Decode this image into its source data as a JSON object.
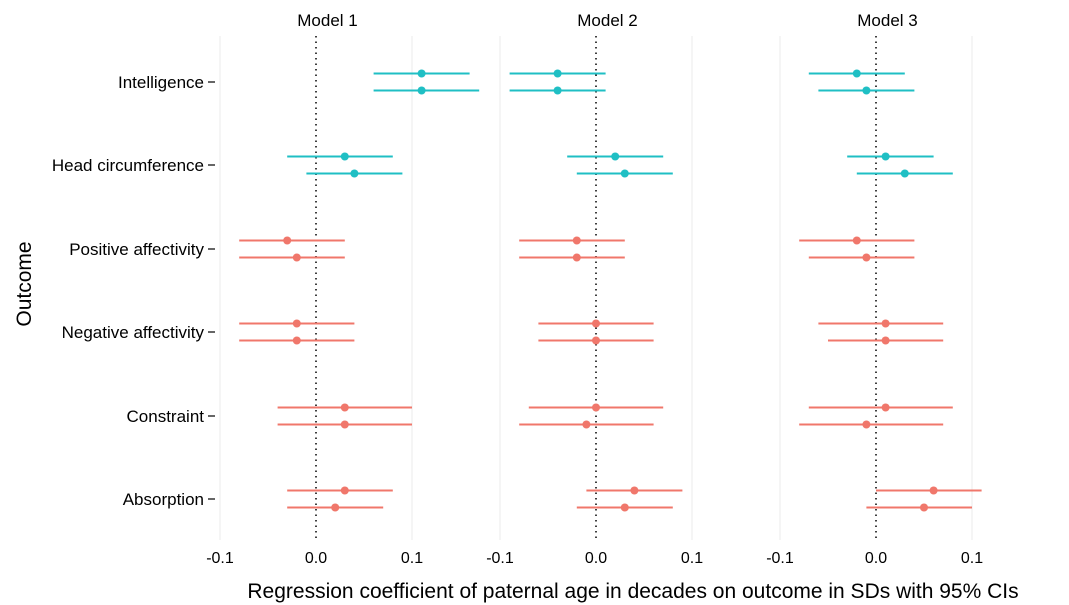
{
  "chart_data": {
    "type": "forest",
    "xlabel": "Regression coefficient of paternal age in decades on outcome in SDs with 95% CIs",
    "ylabel": "Outcome",
    "xlim": [
      -0.1,
      0.12
    ],
    "x_ticks": [
      -0.1,
      0.0,
      0.1
    ],
    "x_tick_labels": [
      "-0.1",
      "0.0",
      "0.1"
    ],
    "reference_line": 0,
    "grid": true,
    "outcomes": [
      "Intelligence",
      "Head circumference",
      "Positive affectivity",
      "Negative affectivity",
      "Constraint",
      "Absorption"
    ],
    "colors": {
      "Intelligence": "#1fbfc4",
      "Head circumference": "#1fbfc4",
      "Positive affectivity": "#f0776b",
      "Negative affectivity": "#f0776b",
      "Constraint": "#f0776b",
      "Absorption": "#f0776b"
    },
    "panels": [
      {
        "title": "Model 1",
        "rows": [
          {
            "outcome": "Intelligence",
            "estimates": [
              {
                "est": 0.11,
                "lo": 0.06,
                "hi": 0.16
              },
              {
                "est": 0.11,
                "lo": 0.06,
                "hi": 0.17
              }
            ]
          },
          {
            "outcome": "Head circumference",
            "estimates": [
              {
                "est": 0.03,
                "lo": -0.03,
                "hi": 0.08
              },
              {
                "est": 0.04,
                "lo": -0.01,
                "hi": 0.09
              }
            ]
          },
          {
            "outcome": "Positive affectivity",
            "estimates": [
              {
                "est": -0.03,
                "lo": -0.08,
                "hi": 0.03
              },
              {
                "est": -0.02,
                "lo": -0.08,
                "hi": 0.03
              }
            ]
          },
          {
            "outcome": "Negative affectivity",
            "estimates": [
              {
                "est": -0.02,
                "lo": -0.08,
                "hi": 0.04
              },
              {
                "est": -0.02,
                "lo": -0.08,
                "hi": 0.04
              }
            ]
          },
          {
            "outcome": "Constraint",
            "estimates": [
              {
                "est": 0.03,
                "lo": -0.04,
                "hi": 0.1
              },
              {
                "est": 0.03,
                "lo": -0.04,
                "hi": 0.1
              }
            ]
          },
          {
            "outcome": "Absorption",
            "estimates": [
              {
                "est": 0.03,
                "lo": -0.03,
                "hi": 0.08
              },
              {
                "est": 0.02,
                "lo": -0.03,
                "hi": 0.07
              }
            ]
          }
        ]
      },
      {
        "title": "Model 2",
        "rows": [
          {
            "outcome": "Intelligence",
            "estimates": [
              {
                "est": -0.04,
                "lo": -0.09,
                "hi": 0.01
              },
              {
                "est": -0.04,
                "lo": -0.09,
                "hi": 0.01
              }
            ]
          },
          {
            "outcome": "Head circumference",
            "estimates": [
              {
                "est": 0.02,
                "lo": -0.03,
                "hi": 0.07
              },
              {
                "est": 0.03,
                "lo": -0.02,
                "hi": 0.08
              }
            ]
          },
          {
            "outcome": "Positive affectivity",
            "estimates": [
              {
                "est": -0.02,
                "lo": -0.08,
                "hi": 0.03
              },
              {
                "est": -0.02,
                "lo": -0.08,
                "hi": 0.03
              }
            ]
          },
          {
            "outcome": "Negative affectivity",
            "estimates": [
              {
                "est": 0.0,
                "lo": -0.06,
                "hi": 0.06
              },
              {
                "est": 0.0,
                "lo": -0.06,
                "hi": 0.06
              }
            ]
          },
          {
            "outcome": "Constraint",
            "estimates": [
              {
                "est": 0.0,
                "lo": -0.07,
                "hi": 0.07
              },
              {
                "est": -0.01,
                "lo": -0.08,
                "hi": 0.06
              }
            ]
          },
          {
            "outcome": "Absorption",
            "estimates": [
              {
                "est": 0.04,
                "lo": -0.01,
                "hi": 0.09
              },
              {
                "est": 0.03,
                "lo": -0.02,
                "hi": 0.08
              }
            ]
          }
        ]
      },
      {
        "title": "Model 3",
        "rows": [
          {
            "outcome": "Intelligence",
            "estimates": [
              {
                "est": -0.02,
                "lo": -0.07,
                "hi": 0.03
              },
              {
                "est": -0.01,
                "lo": -0.06,
                "hi": 0.04
              }
            ]
          },
          {
            "outcome": "Head circumference",
            "estimates": [
              {
                "est": 0.01,
                "lo": -0.03,
                "hi": 0.06
              },
              {
                "est": 0.03,
                "lo": -0.02,
                "hi": 0.08
              }
            ]
          },
          {
            "outcome": "Positive affectivity",
            "estimates": [
              {
                "est": -0.02,
                "lo": -0.08,
                "hi": 0.04
              },
              {
                "est": -0.01,
                "lo": -0.07,
                "hi": 0.04
              }
            ]
          },
          {
            "outcome": "Negative affectivity",
            "estimates": [
              {
                "est": 0.01,
                "lo": -0.06,
                "hi": 0.07
              },
              {
                "est": 0.01,
                "lo": -0.05,
                "hi": 0.07
              }
            ]
          },
          {
            "outcome": "Constraint",
            "estimates": [
              {
                "est": 0.01,
                "lo": -0.07,
                "hi": 0.08
              },
              {
                "est": -0.01,
                "lo": -0.08,
                "hi": 0.07
              }
            ]
          },
          {
            "outcome": "Absorption",
            "estimates": [
              {
                "est": 0.06,
                "lo": 0.0,
                "hi": 0.11
              },
              {
                "est": 0.05,
                "lo": -0.01,
                "hi": 0.1
              }
            ]
          }
        ]
      }
    ]
  }
}
